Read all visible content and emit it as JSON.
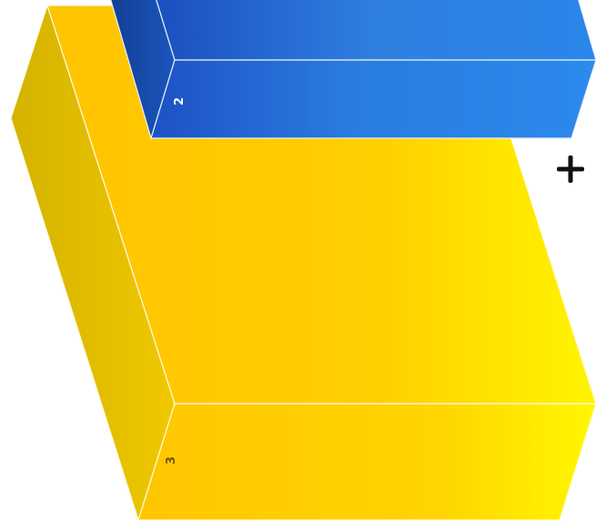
{
  "blocks": [
    {
      "id": "block-2",
      "label": "2",
      "color": "blue",
      "colors": {
        "top_start": "#1a4fbf",
        "top_mid": "#2f7fe0",
        "top_end": "#2a86ea",
        "front_start": "#1d52c4",
        "front_end": "#2b8aec",
        "side": "#1648a6",
        "side_dark": "#133f94",
        "edge": "#e8f0ff"
      }
    },
    {
      "id": "block-3",
      "label": "3",
      "color": "yellow",
      "colors": {
        "top_start": "#ffc400",
        "top_mid": "#ffcf00",
        "top_end": "#fff400",
        "front_start": "#ffc600",
        "front_mid": "#ffd400",
        "front_end": "#fff700",
        "side_start": "#d4b200",
        "side_end": "#f0c800",
        "edge": "#fffbe0",
        "label_color": "#7a6400"
      }
    }
  ],
  "controls": {
    "add": {
      "icon": "plus-icon",
      "glyph": "+",
      "color": "#111111"
    }
  }
}
